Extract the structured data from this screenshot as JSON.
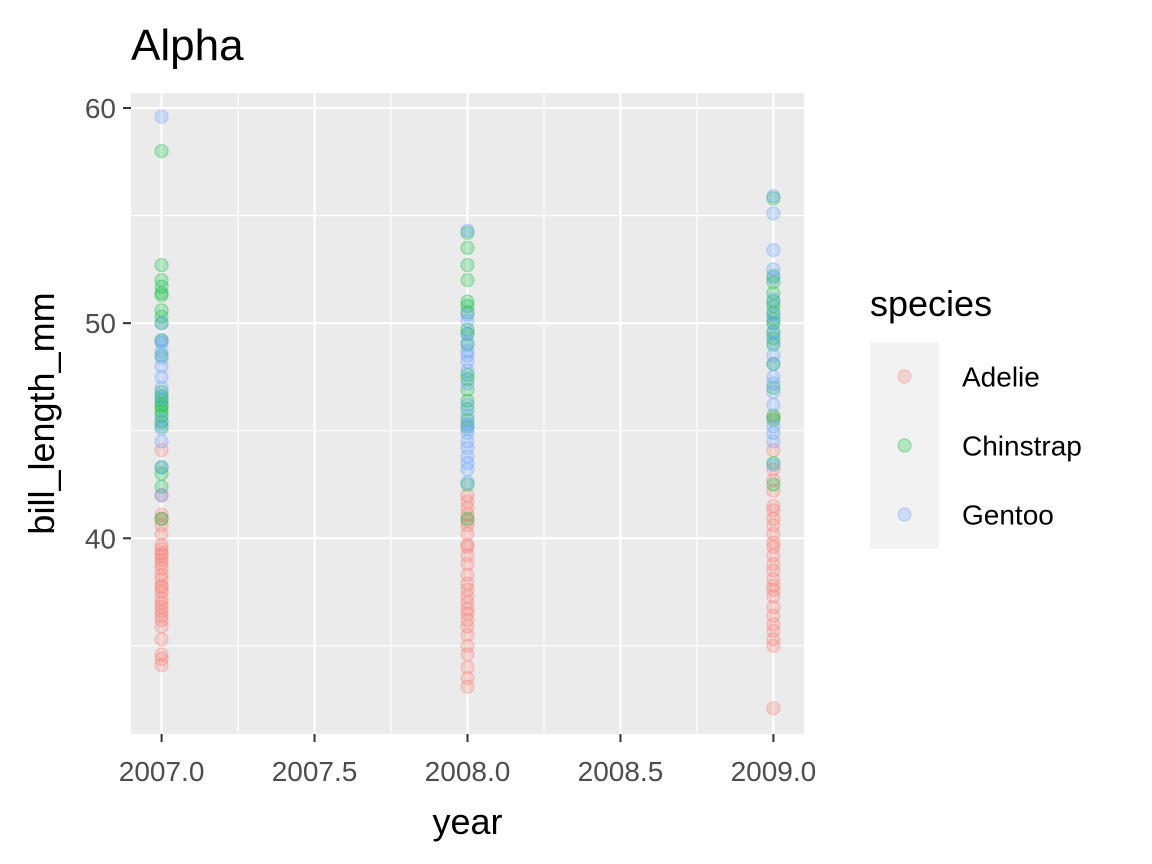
{
  "chart_data": {
    "type": "scatter",
    "title": "Alpha",
    "xlabel": "year",
    "ylabel": "bill_length_mm",
    "xlim": [
      2006.9,
      2009.1
    ],
    "ylim": [
      30.9,
      60.7
    ],
    "x_ticks": [
      2007.0,
      2007.5,
      2008.0,
      2008.5,
      2009.0
    ],
    "x_tick_labels": [
      "2007.0",
      "2007.5",
      "2008.0",
      "2008.5",
      "2009.0"
    ],
    "y_ticks": [
      40,
      50,
      60
    ],
    "y_tick_labels": [
      "40",
      "50",
      "60"
    ],
    "grid": true,
    "legend": {
      "title": "species",
      "position": "right"
    },
    "series": [
      {
        "name": "Adelie",
        "color": "#F8766D",
        "points": [
          [
            2007,
            34.1
          ],
          [
            2007,
            34.4
          ],
          [
            2007,
            34.6
          ],
          [
            2007,
            35.3
          ],
          [
            2007,
            35.9
          ],
          [
            2007,
            36.2
          ],
          [
            2007,
            36.4
          ],
          [
            2007,
            36.6
          ],
          [
            2007,
            36.8
          ],
          [
            2007,
            37.0
          ],
          [
            2007,
            37.2
          ],
          [
            2007,
            37.5
          ],
          [
            2007,
            37.7
          ],
          [
            2007,
            37.8
          ],
          [
            2007,
            38.1
          ],
          [
            2007,
            38.3
          ],
          [
            2007,
            38.6
          ],
          [
            2007,
            38.8
          ],
          [
            2007,
            39.0
          ],
          [
            2007,
            39.2
          ],
          [
            2007,
            39.3
          ],
          [
            2007,
            39.5
          ],
          [
            2007,
            39.7
          ],
          [
            2007,
            40.2
          ],
          [
            2007,
            40.6
          ],
          [
            2007,
            40.9
          ],
          [
            2007,
            41.1
          ],
          [
            2007,
            42.0
          ],
          [
            2007,
            44.1
          ],
          [
            2008,
            33.1
          ],
          [
            2008,
            33.5
          ],
          [
            2008,
            34.0
          ],
          [
            2008,
            34.6
          ],
          [
            2008,
            35.0
          ],
          [
            2008,
            35.5
          ],
          [
            2008,
            35.9
          ],
          [
            2008,
            36.2
          ],
          [
            2008,
            36.5
          ],
          [
            2008,
            36.7
          ],
          [
            2008,
            37.0
          ],
          [
            2008,
            37.3
          ],
          [
            2008,
            37.6
          ],
          [
            2008,
            37.9
          ],
          [
            2008,
            38.3
          ],
          [
            2008,
            38.8
          ],
          [
            2008,
            39.2
          ],
          [
            2008,
            39.6
          ],
          [
            2008,
            39.7
          ],
          [
            2008,
            40.2
          ],
          [
            2008,
            40.6
          ],
          [
            2008,
            40.8
          ],
          [
            2008,
            41.1
          ],
          [
            2008,
            41.4
          ],
          [
            2008,
            41.7
          ],
          [
            2008,
            42.0
          ],
          [
            2009,
            32.1
          ],
          [
            2009,
            35.0
          ],
          [
            2009,
            35.3
          ],
          [
            2009,
            35.7
          ],
          [
            2009,
            36.0
          ],
          [
            2009,
            36.4
          ],
          [
            2009,
            36.8
          ],
          [
            2009,
            37.3
          ],
          [
            2009,
            37.6
          ],
          [
            2009,
            37.8
          ],
          [
            2009,
            38.1
          ],
          [
            2009,
            38.5
          ],
          [
            2009,
            38.8
          ],
          [
            2009,
            39.2
          ],
          [
            2009,
            39.6
          ],
          [
            2009,
            39.8
          ],
          [
            2009,
            40.2
          ],
          [
            2009,
            40.6
          ],
          [
            2009,
            40.9
          ],
          [
            2009,
            41.3
          ],
          [
            2009,
            41.5
          ],
          [
            2009,
            42.2
          ],
          [
            2009,
            42.7
          ],
          [
            2009,
            43.2
          ],
          [
            2009,
            44.1
          ],
          [
            2009,
            45.6
          ]
        ]
      },
      {
        "name": "Chinstrap",
        "color": "#00BA38",
        "points": [
          [
            2007,
            40.9
          ],
          [
            2007,
            42.4
          ],
          [
            2007,
            43.0
          ],
          [
            2007,
            43.3
          ],
          [
            2007,
            45.2
          ],
          [
            2007,
            45.4
          ],
          [
            2007,
            45.7
          ],
          [
            2007,
            45.9
          ],
          [
            2007,
            46.1
          ],
          [
            2007,
            46.2
          ],
          [
            2007,
            46.4
          ],
          [
            2007,
            46.6
          ],
          [
            2007,
            46.8
          ],
          [
            2007,
            48.5
          ],
          [
            2007,
            49.2
          ],
          [
            2007,
            50.0
          ],
          [
            2007,
            50.3
          ],
          [
            2007,
            50.6
          ],
          [
            2007,
            51.3
          ],
          [
            2007,
            51.4
          ],
          [
            2007,
            51.7
          ],
          [
            2007,
            52.0
          ],
          [
            2007,
            52.7
          ],
          [
            2007,
            58.0
          ],
          [
            2008,
            40.9
          ],
          [
            2008,
            42.5
          ],
          [
            2008,
            45.2
          ],
          [
            2008,
            45.5
          ],
          [
            2008,
            46.0
          ],
          [
            2008,
            46.4
          ],
          [
            2008,
            46.9
          ],
          [
            2008,
            47.4
          ],
          [
            2008,
            47.6
          ],
          [
            2008,
            49.0
          ],
          [
            2008,
            49.5
          ],
          [
            2008,
            49.7
          ],
          [
            2008,
            50.5
          ],
          [
            2008,
            50.8
          ],
          [
            2008,
            51.0
          ],
          [
            2008,
            52.0
          ],
          [
            2008,
            52.7
          ],
          [
            2008,
            53.5
          ],
          [
            2008,
            54.2
          ],
          [
            2009,
            42.5
          ],
          [
            2009,
            43.5
          ],
          [
            2009,
            45.5
          ],
          [
            2009,
            45.7
          ],
          [
            2009,
            47.0
          ],
          [
            2009,
            48.1
          ],
          [
            2009,
            49.0
          ],
          [
            2009,
            49.3
          ],
          [
            2009,
            49.6
          ],
          [
            2009,
            50.0
          ],
          [
            2009,
            50.2
          ],
          [
            2009,
            50.5
          ],
          [
            2009,
            50.8
          ],
          [
            2009,
            51.0
          ],
          [
            2009,
            51.4
          ],
          [
            2009,
            51.9
          ],
          [
            2009,
            52.2
          ],
          [
            2009,
            55.8
          ]
        ]
      },
      {
        "name": "Gentoo",
        "color": "#619CFF",
        "points": [
          [
            2007,
            42.0
          ],
          [
            2007,
            43.3
          ],
          [
            2007,
            44.5
          ],
          [
            2007,
            45.1
          ],
          [
            2007,
            45.5
          ],
          [
            2007,
            46.5
          ],
          [
            2007,
            47.0
          ],
          [
            2007,
            47.5
          ],
          [
            2007,
            48.0
          ],
          [
            2007,
            48.4
          ],
          [
            2007,
            48.7
          ],
          [
            2007,
            49.1
          ],
          [
            2007,
            49.2
          ],
          [
            2007,
            50.0
          ],
          [
            2007,
            59.6
          ],
          [
            2008,
            42.6
          ],
          [
            2008,
            43.2
          ],
          [
            2008,
            43.5
          ],
          [
            2008,
            43.8
          ],
          [
            2008,
            44.2
          ],
          [
            2008,
            44.5
          ],
          [
            2008,
            44.9
          ],
          [
            2008,
            45.1
          ],
          [
            2008,
            45.3
          ],
          [
            2008,
            45.7
          ],
          [
            2008,
            46.2
          ],
          [
            2008,
            47.2
          ],
          [
            2008,
            47.8
          ],
          [
            2008,
            48.2
          ],
          [
            2008,
            48.5
          ],
          [
            2008,
            48.7
          ],
          [
            2008,
            49.1
          ],
          [
            2008,
            49.5
          ],
          [
            2008,
            50.1
          ],
          [
            2008,
            50.4
          ],
          [
            2008,
            54.3
          ],
          [
            2009,
            43.4
          ],
          [
            2009,
            44.5
          ],
          [
            2009,
            44.9
          ],
          [
            2009,
            45.2
          ],
          [
            2009,
            46.2
          ],
          [
            2009,
            46.8
          ],
          [
            2009,
            47.2
          ],
          [
            2009,
            47.5
          ],
          [
            2009,
            48.1
          ],
          [
            2009,
            48.5
          ],
          [
            2009,
            49.1
          ],
          [
            2009,
            49.5
          ],
          [
            2009,
            50.0
          ],
          [
            2009,
            50.4
          ],
          [
            2009,
            51.1
          ],
          [
            2009,
            52.1
          ],
          [
            2009,
            52.5
          ],
          [
            2009,
            53.4
          ],
          [
            2009,
            55.1
          ],
          [
            2009,
            55.9
          ]
        ]
      }
    ]
  }
}
